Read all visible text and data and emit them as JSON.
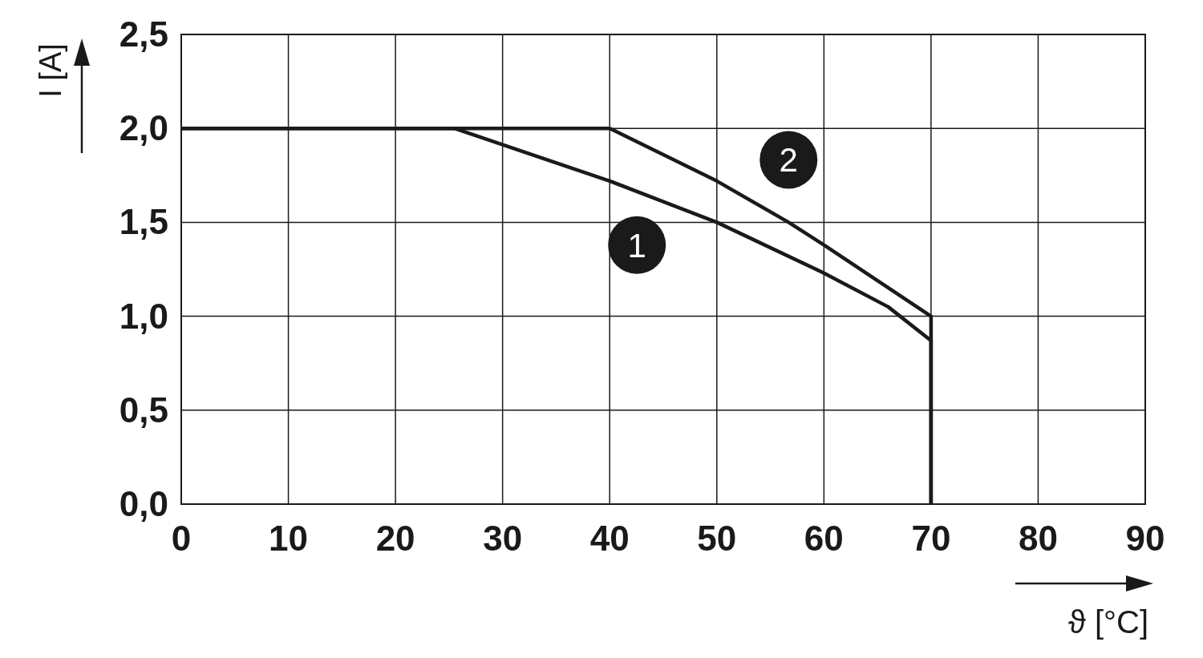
{
  "chart_data": {
    "type": "line",
    "xlabel": "ϑ [°C]",
    "ylabel": "I [A]",
    "xlim": [
      0,
      90
    ],
    "ylim": [
      0,
      2.5
    ],
    "xticks": [
      0,
      10,
      20,
      30,
      40,
      50,
      60,
      70,
      80,
      90
    ],
    "yticks": [
      {
        "value": 0,
        "label": "0,0"
      },
      {
        "value": 0.5,
        "label": "0,5"
      },
      {
        "value": 1,
        "label": "1,0"
      },
      {
        "value": 1.5,
        "label": "1,5"
      },
      {
        "value": 2,
        "label": "2,0"
      },
      {
        "value": 2.5,
        "label": "2,5"
      }
    ],
    "grid": true,
    "marker": "none",
    "line_style": "solid",
    "series": [
      {
        "name": "1",
        "color": "#1a1a1a",
        "x": [
          0,
          25.5,
          40,
          50,
          60,
          66,
          70,
          70
        ],
        "values": [
          2,
          2,
          1.72,
          1.5,
          1.23,
          1.05,
          0.87,
          0
        ]
      },
      {
        "name": "2",
        "color": "#1a1a1a",
        "x": [
          0,
          40,
          50,
          56.7,
          60,
          70,
          70
        ],
        "values": [
          2,
          2,
          1.72,
          1.5,
          1.38,
          1,
          0
        ]
      }
    ]
  }
}
